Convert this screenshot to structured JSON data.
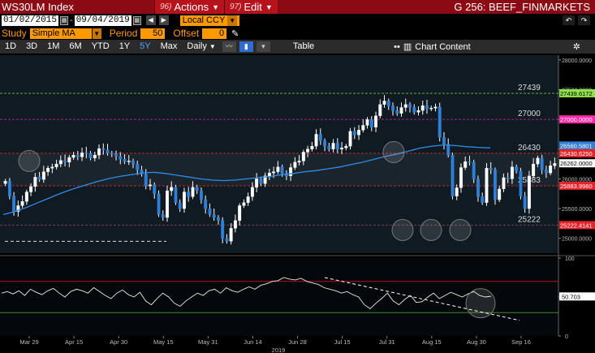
{
  "header": {
    "ticker": "WS30LM Index",
    "menus": [
      {
        "num": "96)",
        "label": "Actions"
      },
      {
        "num": "97)",
        "label": "Edit"
      }
    ],
    "graph_title": "G 256: BEEF_FINMARKETS"
  },
  "range": {
    "start_date": "01/02/2015",
    "end_date": "09/04/2019",
    "currency": "Local CCY"
  },
  "study": {
    "label": "Study",
    "type": "Simple MA",
    "period_label": "Period",
    "period": "50",
    "offset_label": "Offset",
    "offset": "0"
  },
  "toolbar": {
    "periods": [
      "1D",
      "3D",
      "1M",
      "6M",
      "YTD",
      "1Y",
      "5Y",
      "Max"
    ],
    "active_period": "5Y",
    "frequency": "Daily",
    "table_label": "Table",
    "chart_content_label": "Chart Content"
  },
  "chart_data": {
    "type": "candlestick",
    "x_tick_labels": [
      "Mar 29",
      "Apr 15",
      "Apr 30",
      "May 15",
      "May 31",
      "Jun 14",
      "Jun 28",
      "Jul 15",
      "Jul 31",
      "Aug 15",
      "Aug 30",
      "Sep 16"
    ],
    "x_year_label": "2019",
    "y_ticks": [
      25000,
      25500,
      26000,
      26500,
      27000,
      27500,
      28000
    ],
    "y_tick_labels": [
      "25000.0000",
      "25500.0000",
      "26000.0000",
      "26500.0000",
      "27000.0000",
      "27500.0000",
      "28000.0000"
    ],
    "ylim": [
      24750,
      28080
    ],
    "horizontal_levels": [
      27439,
      27000,
      26430,
      25883,
      25222
    ],
    "level_labels": [
      "27439",
      "27000",
      "26430",
      "25883",
      "25222"
    ],
    "price_badges": [
      {
        "label": "27439.6172",
        "value": 27439.6172,
        "color": "#8fe34a"
      },
      {
        "label": "27000.0000",
        "value": 27000,
        "color": "#ff2aa8"
      },
      {
        "label": "26560.5801",
        "value": 26560.5801,
        "color": "#2f7fd6"
      },
      {
        "label": "26430.6250",
        "value": 26430.625,
        "color": "#e8242a"
      },
      {
        "label": "26262.0000",
        "value": 26262,
        "color": "#ffffff"
      },
      {
        "label": "25883.9980",
        "value": 25883.998,
        "color": "#e8242a"
      },
      {
        "label": "25222.4141",
        "value": 25222.4141,
        "color": "#e8242a"
      }
    ],
    "close_series": [
      25960,
      25710,
      25450,
      25550,
      25620,
      25780,
      25870,
      26030,
      25990,
      26120,
      26180,
      26200,
      26250,
      26310,
      26280,
      26360,
      26400,
      26370,
      26440,
      26430,
      26350,
      26400,
      26510,
      26490,
      26430,
      26420,
      26380,
      26330,
      26290,
      26300,
      26250,
      26150,
      26080,
      25880,
      25900,
      25750,
      25400,
      25350,
      25800,
      25860,
      25600,
      25500,
      25780,
      25700,
      25860,
      25800,
      25650,
      25500,
      25400,
      25350,
      25300,
      25000,
      24950,
      25170,
      25300,
      25550,
      25600,
      25700,
      25860,
      26000,
      25920,
      26050,
      26100,
      26120,
      26200,
      26090,
      26050,
      26190,
      26280,
      26300,
      26450,
      26500,
      26550,
      26750,
      26640,
      26550,
      26500,
      26600,
      26500,
      26520,
      26550,
      26800,
      26740,
      26820,
      26900,
      27000,
      26870,
      27060,
      27250,
      27310,
      27230,
      27150,
      27100,
      27200,
      27250,
      27200,
      27120,
      27150,
      27230,
      27180,
      27190,
      27210,
      26700,
      26580,
      26400,
      25710,
      25850,
      26190,
      26290,
      26280,
      26000,
      25700,
      25600,
      26180,
      26150,
      25650,
      25830,
      26020,
      26000,
      26200,
      26130,
      25710,
      25500,
      26050,
      26250,
      26350,
      26150,
      26100,
      26220,
      26260
    ],
    "ma_series": [
      25400,
      25450,
      25520,
      25600,
      25680,
      25760,
      25830,
      25890,
      25950,
      26000,
      26040,
      26070,
      26100,
      26110,
      26090,
      26060,
      26030,
      26000,
      25980,
      25970,
      25980,
      26000,
      26020,
      26040,
      26070,
      26090,
      26120,
      26140,
      26170,
      26200,
      26240,
      26280,
      26330,
      26380,
      26420,
      26470,
      26520,
      26550,
      26570,
      26560,
      26540,
      26530,
      26520
    ],
    "oscillator": {
      "y_ticks": [
        0,
        50,
        100
      ],
      "value_label": "50.703",
      "upper_level": 70,
      "lower_level": 30,
      "values": [
        55,
        57,
        54,
        58,
        52,
        60,
        56,
        53,
        58,
        61,
        55,
        50,
        57,
        60,
        58,
        55,
        62,
        57,
        52,
        48,
        55,
        59,
        53,
        50,
        56,
        45,
        40,
        48,
        55,
        50,
        42,
        38,
        45,
        50,
        55,
        52,
        58,
        60,
        55,
        62,
        58,
        56,
        60,
        63,
        60,
        65,
        67,
        70,
        71,
        75,
        73,
        72,
        74,
        70,
        68,
        66,
        62,
        60,
        58,
        55,
        57,
        53,
        50,
        40,
        35,
        42,
        48,
        55,
        45,
        40,
        47,
        52,
        43,
        44,
        50,
        55,
        48,
        52,
        56,
        53,
        50,
        54,
        57,
        52,
        50,
        51
      ]
    }
  }
}
